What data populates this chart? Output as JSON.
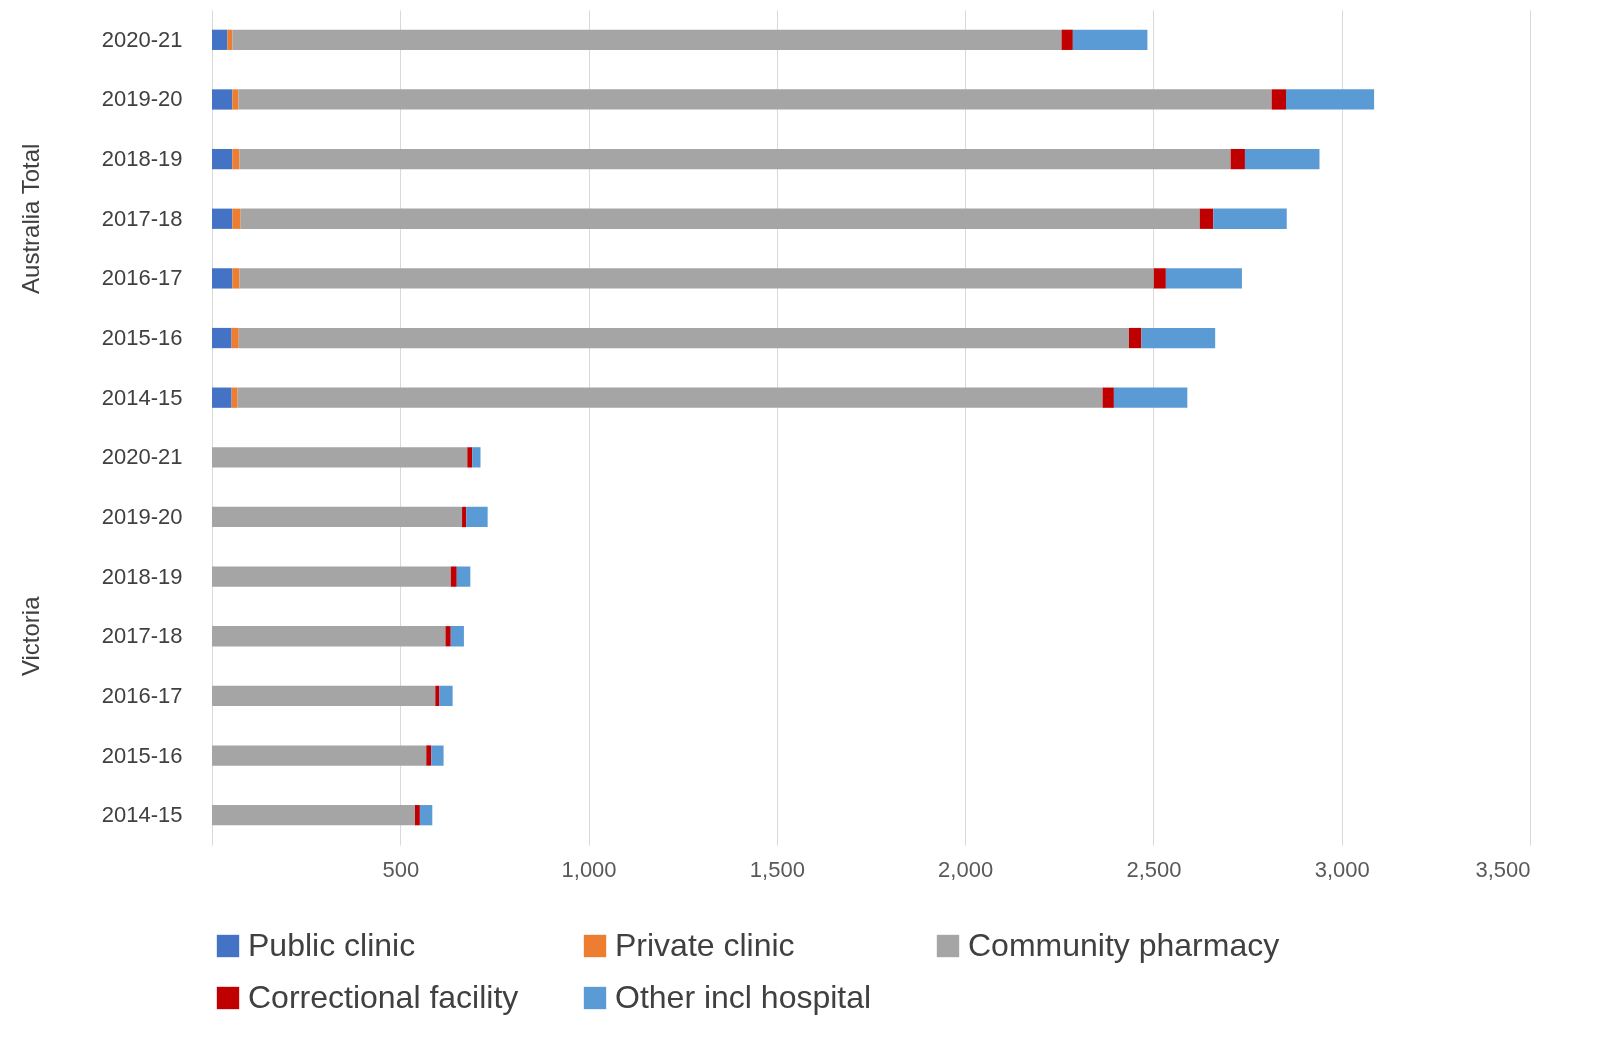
{
  "chart_data": {
    "type": "bar",
    "orientation": "horizontal",
    "stacked": true,
    "categories": [
      "2020-21",
      "2019-20",
      "2018-19",
      "2017-18",
      "2016-17",
      "2015-16",
      "2014-15",
      "2020-21",
      "2019-20",
      "2018-19",
      "2017-18",
      "2016-17",
      "2015-16",
      "2014-15"
    ],
    "annotations": [
      "Australia Total",
      "Victoria"
    ],
    "series": [
      {
        "name": "Public clinic",
        "color": "#4472c4",
        "values": [
          41,
          54,
          54,
          54,
          54,
          52,
          52,
          0,
          0,
          0,
          0,
          0,
          0,
          0
        ]
      },
      {
        "name": "Private clinic",
        "color": "#ed7d31",
        "values": [
          13,
          16,
          19,
          22,
          19,
          19,
          16,
          0,
          0,
          0,
          0,
          0,
          0,
          0
        ]
      },
      {
        "name": "Community pharmacy",
        "color": "#a5a5a5",
        "values": [
          2202,
          2744,
          2632,
          2547,
          2428,
          2364,
          2297,
          678,
          664,
          634,
          620,
          593,
          569,
          539
        ]
      },
      {
        "name": "Correctional facility",
        "color": "#c00000",
        "values": [
          30,
          38,
          38,
          36,
          32,
          33,
          30,
          13,
          11,
          16,
          14,
          11,
          13,
          13
        ]
      },
      {
        "name": "Other incl hospital",
        "color": "#5b9bd5",
        "values": [
          198,
          234,
          198,
          195,
          202,
          196,
          195,
          22,
          57,
          36,
          35,
          35,
          33,
          33
        ]
      }
    ],
    "xlim": [
      0,
      3500
    ],
    "xticks": [
      500,
      {
        "value": 1000,
        "label": "1,000"
      },
      {
        "value": 1500,
        "label": "1,500"
      },
      {
        "value": 2000,
        "label": "2,000"
      },
      {
        "value": 2500,
        "label": "2,500"
      },
      {
        "value": 3000,
        "label": "3,000"
      },
      {
        "value": 3500,
        "label": "3,500"
      }
    ],
    "grid": "x",
    "legend": "bottom"
  }
}
